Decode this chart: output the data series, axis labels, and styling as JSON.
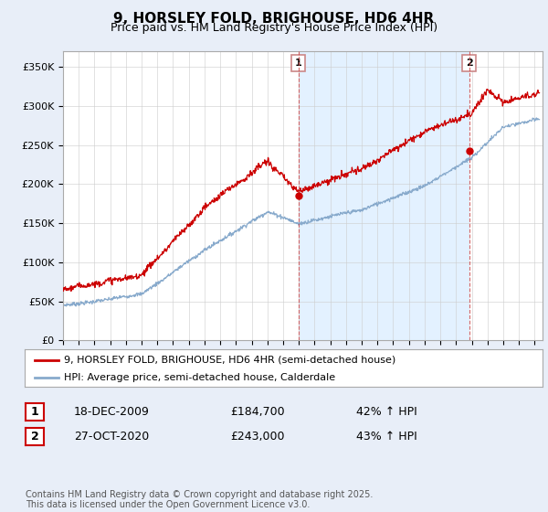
{
  "title": "9, HORSLEY FOLD, BRIGHOUSE, HD6 4HR",
  "subtitle": "Price paid vs. HM Land Registry's House Price Index (HPI)",
  "ylabel_ticks": [
    "£0",
    "£50K",
    "£100K",
    "£150K",
    "£200K",
    "£250K",
    "£300K",
    "£350K"
  ],
  "ytick_values": [
    0,
    50000,
    100000,
    150000,
    200000,
    250000,
    300000,
    350000
  ],
  "ylim": [
    0,
    370000
  ],
  "xlim_start": 1995.0,
  "xlim_end": 2025.5,
  "red_color": "#cc0000",
  "blue_color": "#88aacc",
  "shade_color": "#ddeeff",
  "marker1_date": 2009.97,
  "marker1_price": 184700,
  "marker1_label": "1",
  "marker2_date": 2020.83,
  "marker2_price": 243000,
  "marker2_label": "2",
  "legend_red": "9, HORSLEY FOLD, BRIGHOUSE, HD6 4HR (semi-detached house)",
  "legend_blue": "HPI: Average price, semi-detached house, Calderdale",
  "table_rows": [
    {
      "num": "1",
      "date": "18-DEC-2009",
      "price": "£184,700",
      "change": "42% ↑ HPI"
    },
    {
      "num": "2",
      "date": "27-OCT-2020",
      "price": "£243,000",
      "change": "43% ↑ HPI"
    }
  ],
  "footer": "Contains HM Land Registry data © Crown copyright and database right 2025.\nThis data is licensed under the Open Government Licence v3.0.",
  "background_color": "#e8eef8",
  "plot_bg_color": "#ffffff",
  "title_fontsize": 11,
  "subtitle_fontsize": 9,
  "tick_fontsize": 8,
  "legend_fontsize": 8,
  "table_fontsize": 9,
  "footer_fontsize": 7
}
